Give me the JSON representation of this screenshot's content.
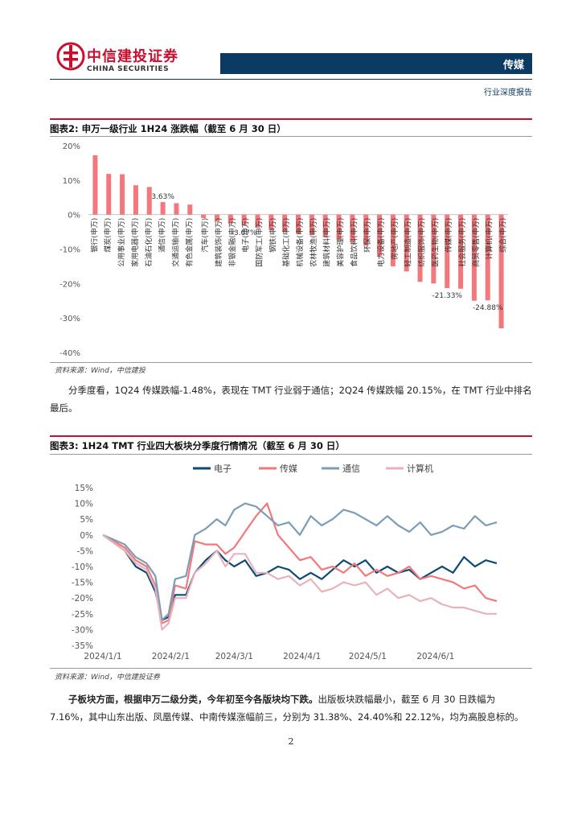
{
  "header": {
    "company_cn": "中信建投证券",
    "company_en": "CHINA SECURITIES",
    "category": "传媒",
    "report_type": "行业深度报告"
  },
  "figure2": {
    "title": "图表2:    申万一级行业 1H24 涨跌幅（截至 6 月 30 日）",
    "source": "资料来源：Wind，中信建投",
    "chart_data": {
      "type": "bar",
      "title": "申万一级行业 1H24 涨跌幅（截至 6 月 30 日）",
      "ylim": [
        -40,
        20
      ],
      "yticks": [
        "20%",
        "10%",
        "0%",
        "-10%",
        "-20%",
        "-30%",
        "-40%"
      ],
      "color": "#f3777b",
      "categories": [
        "银行(申万)",
        "煤炭(申万)",
        "公用事业(申万)",
        "家用电器(申万)",
        "石油石化(申万)",
        "通信(申万)",
        "交通运输(申万)",
        "有色金属(申万)",
        "汽车(申万)",
        "建筑装饰(申万)",
        "非银金融(申万)",
        "电子(申万)",
        "国防军工(申万)",
        "钢铁(申万)",
        "基础化工(申万)",
        "机械设备(申万)",
        "农林牧渔(申万)",
        "建筑材料(申万)",
        "美容护理(申万)",
        "食品饮料(申万)",
        "环保(申万)",
        "电力设备(申万)",
        "房地产(申万)",
        "轻工制造(申万)",
        "纺织服饰(申万)",
        "医药生物(申万)",
        "传媒(申万)",
        "社会服务(申万)",
        "商贸零售(申万)",
        "计算机(申万)",
        "综合(申万)"
      ],
      "values": [
        17.2,
        11.8,
        11.7,
        8.5,
        8.0,
        3.63,
        3.3,
        2.9,
        -1.0,
        -2.0,
        -2.6,
        -3.07,
        -3.8,
        -4.5,
        -5.0,
        -5.5,
        -6.0,
        -6.6,
        -7.2,
        -8.0,
        -9.0,
        -12.0,
        -15.0,
        -16.5,
        -19.5,
        -20.0,
        -21.33,
        -21.5,
        -25.0,
        -24.88,
        -33.0
      ],
      "data_labels": [
        {
          "index": 5,
          "text": "3.63%"
        },
        {
          "index": 11,
          "text": "-3.07%"
        },
        {
          "index": 26,
          "text": "-21.33%"
        },
        {
          "index": 29,
          "text": "-24.88%"
        }
      ]
    }
  },
  "paragraph1": "分季度看，1Q24 传媒跌幅-1.48%，表现在 TMT 行业弱于通信；2Q24 传媒跌幅 20.15%，在 TMT 行业中排名最后。",
  "figure3": {
    "title": "图表3:    1H24 TMT 行业四大板块分季度行情情况（截至 6 月 30 日）",
    "source": "资料来源：Wind，中信建投证券",
    "chart_data": {
      "type": "line",
      "ylim": [
        -35,
        15
      ],
      "yticks": [
        "15%",
        "10%",
        "5%",
        "0%",
        "-5%",
        "-10%",
        "-15%",
        "-20%",
        "-25%",
        "-30%",
        "-35%"
      ],
      "xticks": [
        "2024/1/1",
        "2024/2/1",
        "2024/3/1",
        "2024/4/1",
        "2024/5/1",
        "2024/6/1"
      ],
      "x_keypoints": [
        0,
        10,
        15,
        20,
        24,
        27,
        30,
        33,
        38,
        42,
        47,
        52,
        56,
        60,
        65,
        70,
        75,
        80,
        85,
        90,
        95,
        100,
        105,
        110,
        115,
        120,
        125,
        130,
        135,
        140,
        145,
        150,
        155,
        160,
        165,
        170,
        175,
        180
      ],
      "series": [
        {
          "name": "电子",
          "color": "#0d4a75",
          "values": [
            0,
            -5,
            -10,
            -12,
            -18,
            -27,
            -26,
            -19,
            -19,
            -12,
            -8,
            -5,
            -8,
            -10,
            -8,
            -13,
            -12,
            -10,
            -11,
            -14,
            -12,
            -14,
            -11,
            -8,
            -10,
            -8,
            -12,
            -10,
            -12,
            -11,
            -14,
            -12,
            -10,
            -12,
            -7,
            -10,
            -8,
            -9
          ]
        },
        {
          "name": "传媒",
          "color": "#f3777b",
          "values": [
            0,
            -4,
            -8,
            -10,
            -16,
            -28,
            -27,
            -16,
            -17,
            -2,
            -3,
            -3,
            -6,
            -4,
            1,
            6,
            10,
            0,
            -4,
            -8,
            -7,
            -11,
            -10,
            -12,
            -9,
            -13,
            -11,
            -13,
            -12,
            -10,
            -14,
            -13,
            -14,
            -15,
            -17,
            -16,
            -20,
            -21
          ]
        },
        {
          "name": "通信",
          "color": "#7a9db8",
          "values": [
            0,
            -3,
            -7,
            -9,
            -13,
            -27,
            -25,
            -14,
            -13,
            0,
            2,
            5,
            3,
            8,
            10,
            9,
            6,
            3,
            4,
            0,
            6,
            3,
            5,
            8,
            7,
            5,
            3,
            6,
            3,
            1,
            4,
            0,
            1,
            3,
            2,
            6,
            3,
            4
          ]
        },
        {
          "name": "计算机",
          "color": "#e8b2ba",
          "values": [
            0,
            -5,
            -9,
            -11,
            -17,
            -30,
            -28,
            -20,
            -20,
            -12,
            -9,
            -5,
            -10,
            -6,
            -6,
            -12,
            -12,
            -14,
            -13,
            -16,
            -14,
            -18,
            -17,
            -15,
            -16,
            -15,
            -19,
            -17,
            -20,
            -19,
            -21,
            -20,
            -22,
            -23,
            -23,
            -24,
            -25,
            -25
          ]
        }
      ]
    }
  },
  "paragraph2_bold": "子板块方面，根据申万二级分类，今年初至今各版块均下跌。",
  "paragraph2": "出版板块跌幅最小，截至 6 月 30 日跌幅为 7.16%，其中山东出版、凤凰传媒、中南传媒涨幅前三，分别为 31.38%、24.40%和 22.12%，均为高股息标的。",
  "page_number": "2"
}
